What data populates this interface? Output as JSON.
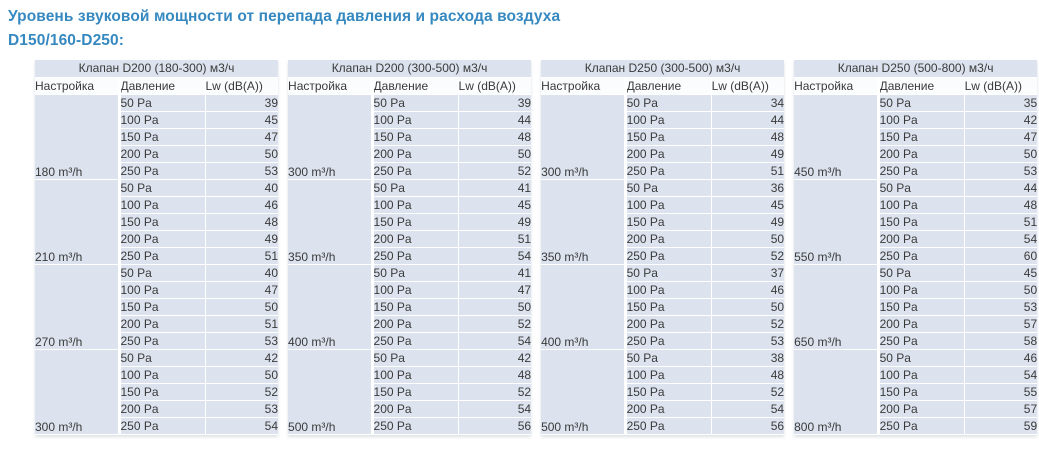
{
  "title": "Уровень звуковой мощности от перепада давления и расхода воздуха D150/160-D250:",
  "columns": [
    "Настройка",
    "Давление",
    "Lw (dB(A))"
  ],
  "colors": {
    "title_blue": "#3689c0",
    "cell_bg": "#dce3ee",
    "header_bg": "#fbfcfd",
    "text": "#3a3a3a"
  },
  "tables": [
    {
      "title": "Клапан D200 (180-300) м3/ч",
      "groups": [
        {
          "setting": "180 m³/h",
          "rows": [
            [
              "50 Pa",
              "39"
            ],
            [
              "100 Pa",
              "45"
            ],
            [
              "150 Pa",
              "47"
            ],
            [
              "200 Pa",
              "50"
            ],
            [
              "250 Pa",
              "53"
            ]
          ]
        },
        {
          "setting": "210 m³/h",
          "rows": [
            [
              "50 Pa",
              "40"
            ],
            [
              "100 Pa",
              "46"
            ],
            [
              "150 Pa",
              "48"
            ],
            [
              "200 Pa",
              "49"
            ],
            [
              "250 Pa",
              "51"
            ]
          ]
        },
        {
          "setting": "270 m³/h",
          "rows": [
            [
              "50 Pa",
              "40"
            ],
            [
              "100 Pa",
              "47"
            ],
            [
              "150 Pa",
              "50"
            ],
            [
              "200 Pa",
              "51"
            ],
            [
              "250 Pa",
              "53"
            ]
          ]
        },
        {
          "setting": "300 m³/h",
          "rows": [
            [
              "50 Pa",
              "42"
            ],
            [
              "100 Pa",
              "50"
            ],
            [
              "150 Pa",
              "52"
            ],
            [
              "200 Pa",
              "53"
            ],
            [
              "250 Pa",
              "54"
            ]
          ]
        }
      ]
    },
    {
      "title": "Клапан D200 (300-500) м3/ч",
      "groups": [
        {
          "setting": "300 m³/h",
          "rows": [
            [
              "50 Pa",
              "39"
            ],
            [
              "100 Pa",
              "44"
            ],
            [
              "150 Pa",
              "48"
            ],
            [
              "200 Pa",
              "50"
            ],
            [
              "250 Pa",
              "52"
            ]
          ]
        },
        {
          "setting": "350 m³/h",
          "rows": [
            [
              "50 Pa",
              "41"
            ],
            [
              "100 Pa",
              "45"
            ],
            [
              "150 Pa",
              "49"
            ],
            [
              "200 Pa",
              "51"
            ],
            [
              "250 Pa",
              "54"
            ]
          ]
        },
        {
          "setting": "400 m³/h",
          "rows": [
            [
              "50 Pa",
              "41"
            ],
            [
              "100 Pa",
              "47"
            ],
            [
              "150 Pa",
              "50"
            ],
            [
              "200 Pa",
              "52"
            ],
            [
              "250 Pa",
              "54"
            ]
          ]
        },
        {
          "setting": "500 m³/h",
          "rows": [
            [
              "50 Pa",
              "42"
            ],
            [
              "100 Pa",
              "48"
            ],
            [
              "150 Pa",
              "52"
            ],
            [
              "200 Pa",
              "54"
            ],
            [
              "250 Pa",
              "56"
            ]
          ]
        }
      ]
    },
    {
      "title": "Клапан D250 (300-500) м3/ч",
      "groups": [
        {
          "setting": "300 m³/h",
          "rows": [
            [
              "50 Pa",
              "34"
            ],
            [
              "100 Pa",
              "44"
            ],
            [
              "150 Pa",
              "48"
            ],
            [
              "200 Pa",
              "49"
            ],
            [
              "250 Pa",
              "51"
            ]
          ]
        },
        {
          "setting": "350 m³/h",
          "rows": [
            [
              "50 Pa",
              "36"
            ],
            [
              "100 Pa",
              "45"
            ],
            [
              "150 Pa",
              "49"
            ],
            [
              "200 Pa",
              "50"
            ],
            [
              "250 Pa",
              "52"
            ]
          ]
        },
        {
          "setting": "400 m³/h",
          "rows": [
            [
              "50 Pa",
              "37"
            ],
            [
              "100 Pa",
              "46"
            ],
            [
              "150 Pa",
              "50"
            ],
            [
              "200 Pa",
              "52"
            ],
            [
              "250 Pa",
              "53"
            ]
          ]
        },
        {
          "setting": "500 m³/h",
          "rows": [
            [
              "50 Pa",
              "38"
            ],
            [
              "100 Pa",
              "48"
            ],
            [
              "150 Pa",
              "52"
            ],
            [
              "200 Pa",
              "54"
            ],
            [
              "250 Pa",
              "56"
            ]
          ]
        }
      ]
    },
    {
      "title": "Клапан D250 (500-800) м3/ч",
      "groups": [
        {
          "setting": "450 m³/h",
          "rows": [
            [
              "50 Pa",
              "35"
            ],
            [
              "100 Pa",
              "42"
            ],
            [
              "150 Pa",
              "47"
            ],
            [
              "200 Pa",
              "50"
            ],
            [
              "250 Pa",
              "53"
            ]
          ]
        },
        {
          "setting": "550 m³/h",
          "rows": [
            [
              "50 Pa",
              "44"
            ],
            [
              "100 Pa",
              "48"
            ],
            [
              "150 Pa",
              "51"
            ],
            [
              "200 Pa",
              "54"
            ],
            [
              "250 Pa",
              "60"
            ]
          ]
        },
        {
          "setting": "650 m³/h",
          "rows": [
            [
              "50 Pa",
              "45"
            ],
            [
              "100 Pa",
              "50"
            ],
            [
              "150 Pa",
              "53"
            ],
            [
              "200 Pa",
              "57"
            ],
            [
              "250 Pa",
              "58"
            ]
          ]
        },
        {
          "setting": "800 m³/h",
          "rows": [
            [
              "50 Pa",
              "46"
            ],
            [
              "100 Pa",
              "54"
            ],
            [
              "150 Pa",
              "55"
            ],
            [
              "200 Pa",
              "57"
            ],
            [
              "250 Pa",
              "59"
            ]
          ]
        }
      ]
    }
  ]
}
